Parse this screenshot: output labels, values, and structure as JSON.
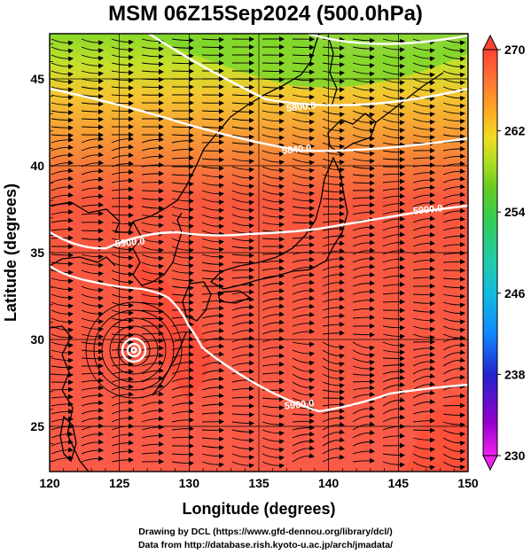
{
  "title": "MSM 06Z15Sep2024 (500.0hPa)",
  "x_axis": {
    "label": "Longitude (degrees)",
    "ticks": [
      "120",
      "125",
      "130",
      "135",
      "140",
      "145",
      "150"
    ],
    "range": [
      120,
      150
    ]
  },
  "y_axis": {
    "label": "Latitude  (degrees)",
    "ticks": [
      "25",
      "30",
      "35",
      "40",
      "45"
    ],
    "range": [
      22.4,
      47.6
    ]
  },
  "colorbar": {
    "ticks": [
      "270",
      "262",
      "254",
      "246",
      "238",
      "230"
    ],
    "min": 230,
    "max": 270,
    "colors": [
      "#ee22ee",
      "#9900cc",
      "#2222cc",
      "#1188ff",
      "#11bbdd",
      "#22ccaa",
      "#33cc55",
      "#66cc22",
      "#aadd22",
      "#eedd22",
      "#ffaa22",
      "#ff7733",
      "#ff4433"
    ]
  },
  "contours": [
    {
      "label": "5800.0"
    },
    {
      "label": "5840.0"
    },
    {
      "label": "5900.0"
    },
    {
      "label": "5900.0"
    },
    {
      "label": "5900.0"
    }
  ],
  "credits": [
    "Drawing by DCL (https://www.gfd-dennou.org/library/dcl/)",
    "Data from http://database.rish.kyoto-u.ac.jp/arch/jmadata/"
  ]
}
